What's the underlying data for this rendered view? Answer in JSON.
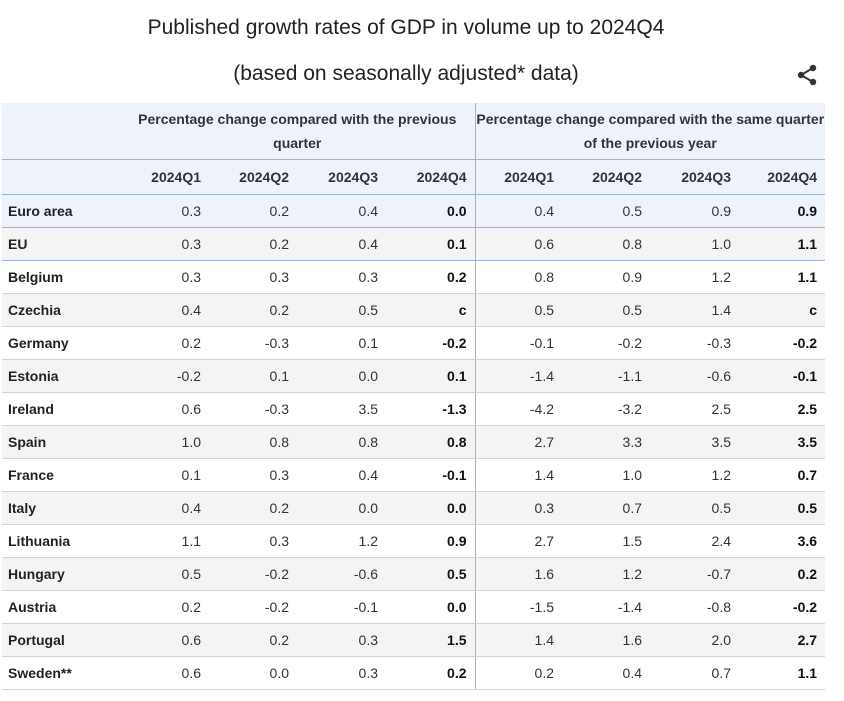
{
  "title": "Published growth rates of GDP in volume up to 2024Q4",
  "subtitle": "(based on seasonally adjusted* data)",
  "share_icon": "share-icon",
  "chart_data": {
    "type": "table",
    "column_groups": [
      "Percentage change compared with the previous quarter",
      "Percentage change compared with the same quarter of the previous year"
    ],
    "quarters": [
      "2024Q1",
      "2024Q2",
      "2024Q3",
      "2024Q4"
    ],
    "rows": [
      {
        "name": "Euro area",
        "qoq": [
          "0.3",
          "0.2",
          "0.4",
          "0.0"
        ],
        "yoy": [
          "0.4",
          "0.5",
          "0.9",
          "0.9"
        ]
      },
      {
        "name": "EU",
        "qoq": [
          "0.3",
          "0.2",
          "0.4",
          "0.1"
        ],
        "yoy": [
          "0.6",
          "0.8",
          "1.0",
          "1.1"
        ]
      },
      {
        "name": "Belgium",
        "qoq": [
          "0.3",
          "0.3",
          "0.3",
          "0.2"
        ],
        "yoy": [
          "0.8",
          "0.9",
          "1.2",
          "1.1"
        ]
      },
      {
        "name": "Czechia",
        "qoq": [
          "0.4",
          "0.2",
          "0.5",
          "c"
        ],
        "yoy": [
          "0.5",
          "0.5",
          "1.4",
          "c"
        ]
      },
      {
        "name": "Germany",
        "qoq": [
          "0.2",
          "-0.3",
          "0.1",
          "-0.2"
        ],
        "yoy": [
          "-0.1",
          "-0.2",
          "-0.3",
          "-0.2"
        ]
      },
      {
        "name": "Estonia",
        "qoq": [
          "-0.2",
          "0.1",
          "0.0",
          "0.1"
        ],
        "yoy": [
          "-1.4",
          "-1.1",
          "-0.6",
          "-0.1"
        ]
      },
      {
        "name": "Ireland",
        "qoq": [
          "0.6",
          "-0.3",
          "3.5",
          "-1.3"
        ],
        "yoy": [
          "-4.2",
          "-3.2",
          "2.5",
          "2.5"
        ]
      },
      {
        "name": "Spain",
        "qoq": [
          "1.0",
          "0.8",
          "0.8",
          "0.8"
        ],
        "yoy": [
          "2.7",
          "3.3",
          "3.5",
          "3.5"
        ]
      },
      {
        "name": "France",
        "qoq": [
          "0.1",
          "0.3",
          "0.4",
          "-0.1"
        ],
        "yoy": [
          "1.4",
          "1.0",
          "1.2",
          "0.7"
        ]
      },
      {
        "name": "Italy",
        "qoq": [
          "0.4",
          "0.2",
          "0.0",
          "0.0"
        ],
        "yoy": [
          "0.3",
          "0.7",
          "0.5",
          "0.5"
        ]
      },
      {
        "name": "Lithuania",
        "qoq": [
          "1.1",
          "0.3",
          "1.2",
          "0.9"
        ],
        "yoy": [
          "2.7",
          "1.5",
          "2.4",
          "3.6"
        ]
      },
      {
        "name": "Hungary",
        "qoq": [
          "0.5",
          "-0.2",
          "-0.6",
          "0.5"
        ],
        "yoy": [
          "1.6",
          "1.2",
          "-0.7",
          "0.2"
        ]
      },
      {
        "name": "Austria",
        "qoq": [
          "0.2",
          "-0.2",
          "-0.1",
          "0.0"
        ],
        "yoy": [
          "-1.5",
          "-1.4",
          "-0.8",
          "-0.2"
        ]
      },
      {
        "name": "Portugal",
        "qoq": [
          "0.6",
          "0.2",
          "0.3",
          "1.5"
        ],
        "yoy": [
          "1.4",
          "1.6",
          "2.0",
          "2.7"
        ]
      },
      {
        "name": "Sweden",
        "name_suffix": "**",
        "qoq": [
          "0.6",
          "0.0",
          "0.3",
          "0.2"
        ],
        "yoy": [
          "0.2",
          "0.4",
          "0.7",
          "1.1"
        ]
      }
    ]
  }
}
